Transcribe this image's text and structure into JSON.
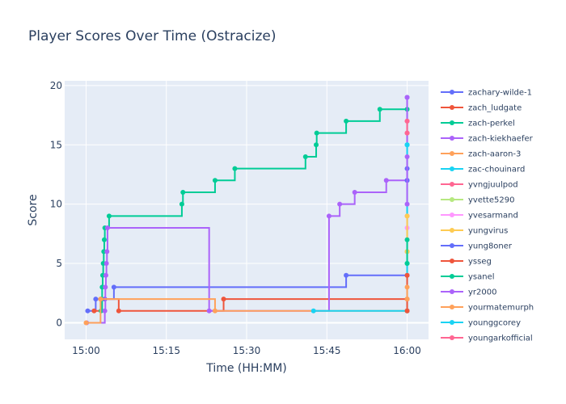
{
  "chart_data": {
    "type": "line",
    "line_shape": "step",
    "title": "Player Scores Over Time (Ostracize)",
    "xlabel": "Time (HH:MM)",
    "ylabel": "Score",
    "x_tick_labels": [
      "15:00",
      "15:15",
      "15:30",
      "15:45",
      "16:00"
    ],
    "x_ticks_min": [
      0,
      15,
      30,
      45,
      60
    ],
    "xlim_min": [
      -4,
      64
    ],
    "y_ticks": [
      0,
      5,
      10,
      15,
      20
    ],
    "ylim": [
      -1.4,
      20.4
    ],
    "grid": true,
    "legend_position": "right",
    "plot_background": "#e5ecf6",
    "series": [
      {
        "name": "zachary-wilde-1",
        "color": "#636efa",
        "x": [
          0.3,
          1.8,
          3.5,
          5.2,
          48.6,
          60,
          60
        ],
        "y": [
          1,
          2,
          2,
          3,
          4,
          4,
          19
        ]
      },
      {
        "name": "zach_ludgate",
        "color": "#ef553b",
        "x": [
          1.5,
          2.8,
          6.1,
          25.7,
          60,
          60
        ],
        "y": [
          1,
          2,
          1,
          2,
          2,
          1
        ]
      },
      {
        "name": "zach-perkel",
        "color": "#00cc96",
        "x": [
          2.8,
          3.0,
          3.1,
          3.2,
          3.3,
          3.4,
          3.5,
          4.3,
          17.9,
          18.1,
          24.1,
          27.8,
          41.0,
          43.0,
          43.1,
          48.6,
          54.9,
          60,
          60
        ],
        "y": [
          1,
          3,
          4,
          5,
          6,
          7,
          8,
          9,
          10,
          11,
          12,
          13,
          14,
          15,
          16,
          17,
          18,
          18,
          5
        ]
      },
      {
        "name": "zach-kiekhaefer",
        "color": "#ab63fa",
        "x": [
          0.1,
          3.5,
          3.6,
          3.7,
          3.8,
          3.9,
          4.0,
          23.0,
          45.4,
          47.4,
          50.2,
          56.1,
          60,
          60
        ],
        "y": [
          0,
          1,
          3,
          4,
          5,
          6,
          8,
          1,
          9,
          10,
          11,
          12,
          12,
          19
        ]
      },
      {
        "name": "zach-aaron-3",
        "color": "#ffa15a",
        "x": [
          0,
          2.7,
          24.1,
          60,
          60
        ],
        "y": [
          0,
          2,
          1,
          1,
          9
        ]
      },
      {
        "name": "zac-chouinard",
        "color": "#19d3f3",
        "x": [
          42.5,
          60,
          60
        ],
        "y": [
          1,
          1,
          15
        ]
      },
      {
        "name": "yvngjuulpod",
        "color": "#ff6692",
        "x": [
          60,
          60
        ],
        "y": [
          16,
          17
        ]
      },
      {
        "name": "yvette5290",
        "color": "#b6e880",
        "x": [
          60,
          60
        ],
        "y": [
          6,
          6
        ]
      },
      {
        "name": "yvesarmand",
        "color": "#ff97ff",
        "x": [
          60,
          60
        ],
        "y": [
          8,
          9
        ]
      },
      {
        "name": "yungvirus",
        "color": "#fecb52",
        "x": [
          60,
          60
        ],
        "y": [
          6,
          9
        ]
      },
      {
        "name": "yung8oner",
        "color": "#636efa",
        "x": [
          60,
          60
        ],
        "y": [
          12,
          13
        ]
      },
      {
        "name": "ysseg",
        "color": "#ef553b",
        "x": [
          60,
          60
        ],
        "y": [
          1,
          4
        ]
      },
      {
        "name": "ysanel",
        "color": "#00cc96",
        "x": [
          60,
          60
        ],
        "y": [
          5,
          7
        ]
      },
      {
        "name": "yr2000",
        "color": "#ab63fa",
        "x": [
          60,
          60
        ],
        "y": [
          10,
          14
        ]
      },
      {
        "name": "yourmatemurph",
        "color": "#ffa15a",
        "x": [
          60,
          60
        ],
        "y": [
          2,
          3
        ]
      },
      {
        "name": "younggcorey",
        "color": "#19d3f3",
        "x": [
          60,
          60
        ],
        "y": [
          15,
          15
        ]
      },
      {
        "name": "youngarkofficial",
        "color": "#ff6692",
        "x": [
          60,
          60
        ],
        "y": [
          16,
          17
        ]
      }
    ]
  }
}
